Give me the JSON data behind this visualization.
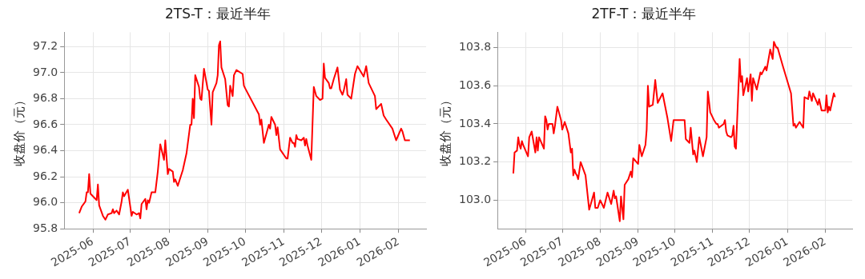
{
  "chart_data": [
    {
      "type": "line",
      "title": "2TS-T：最近半年",
      "ylabel": "收盘价（元）",
      "grid": true,
      "xlim": [
        "2025-05-09",
        "2026-02-23"
      ],
      "ylim": [
        95.8,
        97.31
      ],
      "xticks": [
        "2025-06",
        "2025-07",
        "2025-08",
        "2025-09",
        "2025-10",
        "2025-11",
        "2025-12",
        "2026-01",
        "2026-02"
      ],
      "yticks": [
        95.8,
        {
          "value": 96.0,
          "label": "96.0"
        },
        96.2,
        96.4,
        96.6,
        96.8,
        {
          "value": 97.0,
          "label": "97.0"
        },
        97.2
      ],
      "series": [
        {
          "color": "#ff0000",
          "x": [
            "2025-05-21",
            "2025-05-23",
            "2025-05-26",
            "2025-05-27",
            "2025-05-28",
            "2025-05-29",
            "2025-05-30",
            "2025-06-03",
            "2025-06-04",
            "2025-06-05",
            "2025-06-06",
            "2025-06-09",
            "2025-06-11",
            "2025-06-13",
            "2025-06-16",
            "2025-06-17",
            "2025-06-18",
            "2025-06-20",
            "2025-06-22",
            "2025-06-24",
            "2025-06-25",
            "2025-06-26",
            "2025-06-29",
            "2025-07-02",
            "2025-07-03",
            "2025-07-06",
            "2025-07-08",
            "2025-07-09",
            "2025-07-10",
            "2025-07-13",
            "2025-07-14",
            "2025-07-15",
            "2025-07-16",
            "2025-07-18",
            "2025-07-21",
            "2025-07-23",
            "2025-07-25",
            "2025-07-28",
            "2025-07-29",
            "2025-07-31",
            "2025-08-01",
            "2025-08-04",
            "2025-08-05",
            "2025-08-06",
            "2025-08-08",
            "2025-08-12",
            "2025-08-15",
            "2025-08-18",
            "2025-08-19",
            "2025-08-20",
            "2025-08-21",
            "2025-08-22",
            "2025-08-25",
            "2025-08-26",
            "2025-08-27",
            "2025-08-29",
            "2025-09-01",
            "2025-09-02",
            "2025-09-04",
            "2025-09-05",
            "2025-09-08",
            "2025-09-09",
            "2025-09-10",
            "2025-09-11",
            "2025-09-12",
            "2025-09-15",
            "2025-09-17",
            "2025-09-18",
            "2025-09-19",
            "2025-09-21",
            "2025-09-22",
            "2025-09-24",
            "2025-09-29",
            "2025-09-30",
            "2025-10-01",
            "2025-10-12",
            "2025-10-13",
            "2025-10-14",
            "2025-10-16",
            "2025-10-20",
            "2025-10-21",
            "2025-10-22",
            "2025-10-25",
            "2025-10-26",
            "2025-10-27",
            "2025-10-29",
            "2025-11-03",
            "2025-11-04",
            "2025-11-06",
            "2025-11-08",
            "2025-11-09",
            "2025-11-10",
            "2025-11-11",
            "2025-11-12",
            "2025-11-15",
            "2025-11-17",
            "2025-11-18",
            "2025-11-19",
            "2025-11-20",
            "2025-11-23",
            "2025-11-25",
            "2025-11-27",
            "2025-11-30",
            "2025-12-02",
            "2025-12-03",
            "2025-12-04",
            "2025-12-07",
            "2025-12-08",
            "2025-12-09",
            "2025-12-11",
            "2025-12-14",
            "2025-12-16",
            "2025-12-18",
            "2025-12-19",
            "2025-12-21",
            "2025-12-22",
            "2025-12-25",
            "2025-12-28",
            "2025-12-30",
            "2026-01-04",
            "2026-01-06",
            "2026-01-08",
            "2026-01-13",
            "2026-01-14",
            "2026-01-18",
            "2026-01-20",
            "2026-01-22",
            "2026-01-27",
            "2026-01-30",
            "2026-02-03",
            "2026-02-04",
            "2026-02-06",
            "2026-02-10"
          ],
          "values": [
            95.92,
            95.97,
            96.01,
            96.08,
            96.08,
            96.22,
            96.07,
            96.03,
            96.02,
            96.14,
            95.98,
            95.9,
            95.87,
            95.91,
            95.92,
            95.95,
            95.92,
            95.94,
            95.91,
            96.01,
            96.08,
            96.05,
            96.1,
            95.9,
            95.93,
            95.91,
            95.92,
            95.88,
            95.99,
            96.03,
            95.95,
            96.02,
            96.0,
            96.08,
            96.08,
            96.24,
            96.45,
            96.33,
            96.48,
            96.22,
            96.26,
            96.24,
            96.16,
            96.18,
            96.13,
            96.25,
            96.38,
            96.6,
            96.6,
            96.8,
            96.65,
            96.98,
            96.89,
            96.8,
            96.79,
            97.03,
            96.87,
            96.86,
            96.6,
            96.85,
            96.92,
            96.98,
            97.21,
            97.24,
            97.04,
            96.95,
            96.75,
            96.74,
            96.9,
            96.82,
            96.98,
            97.02,
            96.99,
            96.9,
            96.88,
            96.68,
            96.6,
            96.64,
            96.46,
            96.6,
            96.57,
            96.66,
            96.6,
            96.52,
            96.58,
            96.41,
            96.34,
            96.34,
            96.5,
            96.46,
            96.46,
            96.43,
            96.52,
            96.49,
            96.48,
            96.5,
            96.44,
            96.49,
            96.44,
            96.33,
            96.89,
            96.82,
            96.79,
            96.8,
            97.07,
            96.96,
            96.92,
            96.88,
            96.88,
            96.95,
            97.04,
            96.87,
            96.83,
            96.86,
            96.95,
            96.83,
            96.8,
            96.99,
            97.05,
            96.97,
            97.05,
            96.92,
            96.82,
            96.72,
            96.76,
            96.67,
            96.64,
            96.57,
            96.48,
            96.57,
            96.55,
            96.48,
            96.48
          ]
        }
      ]
    },
    {
      "type": "line",
      "title": "2TF-T：最近半年",
      "ylabel": "收盘价（元）",
      "grid": true,
      "xlim": [
        "2025-05-09",
        "2026-02-23"
      ],
      "ylim": [
        102.85,
        103.88
      ],
      "xticks": [
        "2025-06",
        "2025-07",
        "2025-08",
        "2025-09",
        "2025-10",
        "2025-11",
        "2025-12",
        "2026-01",
        "2026-02"
      ],
      "yticks": [
        {
          "value": 103.0,
          "label": "103.0"
        },
        103.2,
        103.4,
        103.6,
        103.8
      ],
      "series": [
        {
          "color": "#ff0000",
          "x": [
            "2025-05-22",
            "2025-05-23",
            "2025-05-25",
            "2025-05-26",
            "2025-05-27",
            "2025-05-28",
            "2025-05-29",
            "2025-05-30",
            "2025-06-03",
            "2025-06-04",
            "2025-06-06",
            "2025-06-09",
            "2025-06-10",
            "2025-06-11",
            "2025-06-12",
            "2025-06-16",
            "2025-06-17",
            "2025-06-18",
            "2025-06-19",
            "2025-06-20",
            "2025-06-23",
            "2025-06-24",
            "2025-06-25",
            "2025-06-27",
            "2025-06-30",
            "2025-07-01",
            "2025-07-03",
            "2025-07-06",
            "2025-07-08",
            "2025-07-09",
            "2025-07-10",
            "2025-07-11",
            "2025-07-12",
            "2025-07-13",
            "2025-07-14",
            "2025-07-16",
            "2025-07-20",
            "2025-07-23",
            "2025-07-27",
            "2025-07-28",
            "2025-07-30",
            "2025-08-01",
            "2025-08-04",
            "2025-08-07",
            "2025-08-10",
            "2025-08-12",
            "2025-08-13",
            "2025-08-14",
            "2025-08-17",
            "2025-08-18",
            "2025-08-20",
            "2025-08-21",
            "2025-08-24",
            "2025-08-26",
            "2025-08-27",
            "2025-08-28",
            "2025-09-01",
            "2025-09-02",
            "2025-09-04",
            "2025-09-07",
            "2025-09-08",
            "2025-09-09",
            "2025-09-10",
            "2025-09-13",
            "2025-09-15",
            "2025-09-17",
            "2025-09-21",
            "2025-09-25",
            "2025-09-28",
            "2025-09-30",
            "2025-10-09",
            "2025-10-10",
            "2025-10-13",
            "2025-10-14",
            "2025-10-16",
            "2025-10-17",
            "2025-10-19",
            "2025-10-21",
            "2025-10-24",
            "2025-10-27",
            "2025-10-28",
            "2025-10-30",
            "2025-11-02",
            "2025-11-04",
            "2025-11-05",
            "2025-11-06",
            "2025-11-10",
            "2025-11-11",
            "2025-11-12",
            "2025-11-13",
            "2025-11-16",
            "2025-11-17",
            "2025-11-18",
            "2025-11-19",
            "2025-11-20",
            "2025-11-23",
            "2025-11-24",
            "2025-11-25",
            "2025-11-26",
            "2025-11-29",
            "2025-11-30",
            "2025-12-02",
            "2025-12-03",
            "2025-12-04",
            "2025-12-07",
            "2025-12-10",
            "2025-12-11",
            "2025-12-14",
            "2025-12-15",
            "2025-12-18",
            "2025-12-20",
            "2025-12-21",
            "2025-12-23",
            "2025-12-24",
            "2025-12-28",
            "2026-01-04",
            "2026-01-06",
            "2026-01-07",
            "2026-01-08",
            "2026-01-11",
            "2026-01-14",
            "2026-01-15",
            "2026-01-18",
            "2026-01-19",
            "2026-01-21",
            "2026-01-22",
            "2026-01-26",
            "2026-01-27",
            "2026-01-29",
            "2026-02-01",
            "2026-02-02",
            "2026-02-03",
            "2026-02-04",
            "2026-02-05",
            "2026-02-08",
            "2026-02-09"
          ],
          "values": [
            103.14,
            103.25,
            103.26,
            103.33,
            103.29,
            103.27,
            103.31,
            103.29,
            103.23,
            103.33,
            103.36,
            103.25,
            103.33,
            103.26,
            103.33,
            103.27,
            103.44,
            103.42,
            103.37,
            103.4,
            103.4,
            103.35,
            103.39,
            103.49,
            103.42,
            103.37,
            103.41,
            103.35,
            103.25,
            103.27,
            103.13,
            103.16,
            103.14,
            103.13,
            103.11,
            103.2,
            103.13,
            102.95,
            103.04,
            102.96,
            102.96,
            103.0,
            102.96,
            103.04,
            102.98,
            103.05,
            103.01,
            103.02,
            102.89,
            103.02,
            102.9,
            103.08,
            103.11,
            103.15,
            103.12,
            103.22,
            103.19,
            103.29,
            103.23,
            103.29,
            103.37,
            103.6,
            103.49,
            103.5,
            103.63,
            103.51,
            103.56,
            103.43,
            103.31,
            103.42,
            103.42,
            103.32,
            103.3,
            103.38,
            103.24,
            103.26,
            103.2,
            103.33,
            103.23,
            103.33,
            103.57,
            103.46,
            103.42,
            103.4,
            103.4,
            103.38,
            103.4,
            103.42,
            103.36,
            103.34,
            103.33,
            103.34,
            103.39,
            103.28,
            103.27,
            103.74,
            103.62,
            103.65,
            103.55,
            103.64,
            103.57,
            103.66,
            103.52,
            103.64,
            103.58,
            103.67,
            103.66,
            103.7,
            103.68,
            103.79,
            103.74,
            103.83,
            103.8,
            103.8,
            103.71,
            103.56,
            103.39,
            103.4,
            103.38,
            103.41,
            103.38,
            103.54,
            103.53,
            103.57,
            103.52,
            103.56,
            103.5,
            103.53,
            103.47,
            103.47,
            103.55,
            103.46,
            103.49,
            103.47,
            103.56,
            103.54
          ]
        }
      ]
    }
  ]
}
